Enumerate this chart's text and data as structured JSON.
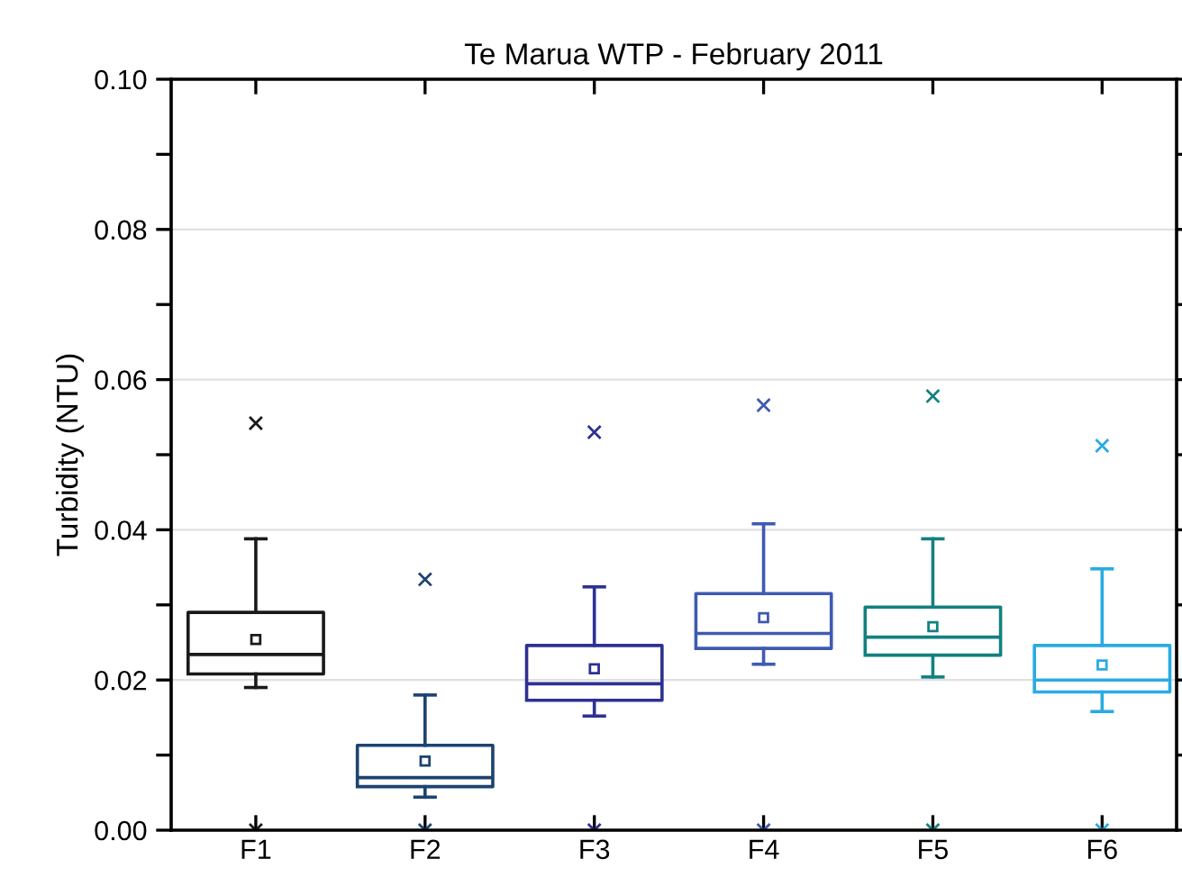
{
  "chart_data": {
    "type": "box",
    "title": "Te Marua WTP - February 2011",
    "ylabel": "Turbidity (NTU)",
    "categories": [
      "F1",
      "F2",
      "F3",
      "F4",
      "F5",
      "F6"
    ],
    "colors": [
      "#1a1a1a",
      "#1d4370",
      "#2e3192",
      "#3f5bb0",
      "#138080",
      "#29abe2"
    ],
    "boxes": [
      {
        "low": 0.019,
        "q1": 0.0208,
        "median": 0.0234,
        "q3": 0.029,
        "high": 0.0388,
        "mean": 0.0254,
        "outliers": [
          0.0542,
          0
        ]
      },
      {
        "low": 0.0044,
        "q1": 0.0058,
        "median": 0.007,
        "q3": 0.0113,
        "high": 0.018,
        "mean": 0.0092,
        "outliers": [
          0.0334,
          0
        ]
      },
      {
        "low": 0.0152,
        "q1": 0.0173,
        "median": 0.0195,
        "q3": 0.0246,
        "high": 0.0324,
        "mean": 0.0215,
        "outliers": [
          0.053,
          0
        ]
      },
      {
        "low": 0.0221,
        "q1": 0.0242,
        "median": 0.0262,
        "q3": 0.0315,
        "high": 0.0408,
        "mean": 0.0283,
        "outliers": [
          0.0566,
          0
        ]
      },
      {
        "low": 0.0204,
        "q1": 0.0233,
        "median": 0.0257,
        "q3": 0.0297,
        "high": 0.0388,
        "mean": 0.0271,
        "outliers": [
          0.0578,
          0
        ]
      },
      {
        "low": 0.0158,
        "q1": 0.0184,
        "median": 0.02,
        "q3": 0.0246,
        "high": 0.0348,
        "mean": 0.022,
        "outliers": [
          0.0512,
          0
        ]
      }
    ],
    "ylim": [
      0,
      0.1
    ],
    "yticks": [
      {
        "value": 0,
        "label": "0.00"
      },
      {
        "value": 0.01,
        "label": null
      },
      {
        "value": 0.02,
        "label": "0.02"
      },
      {
        "value": 0.03,
        "label": null
      },
      {
        "value": 0.04,
        "label": "0.04"
      },
      {
        "value": 0.05,
        "label": null
      },
      {
        "value": 0.06,
        "label": "0.06"
      },
      {
        "value": 0.07,
        "label": null
      },
      {
        "value": 0.08,
        "label": "0.08"
      },
      {
        "value": 0.09,
        "label": null
      },
      {
        "value": 0.1,
        "label": "0.10"
      }
    ],
    "grid": "y",
    "marker": "square"
  }
}
